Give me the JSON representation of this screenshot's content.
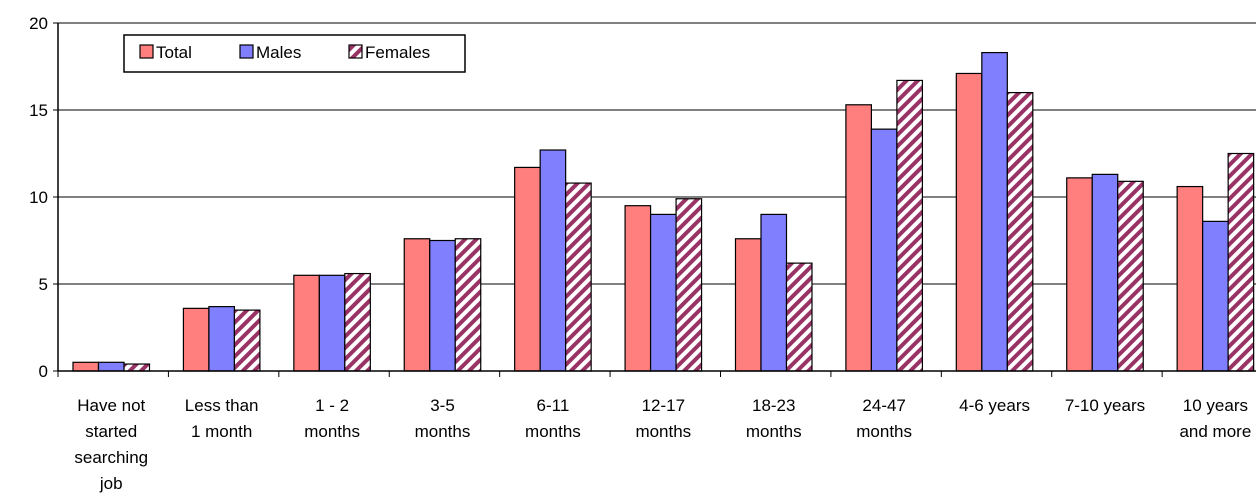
{
  "chart_data": {
    "type": "bar",
    "ylim": [
      0,
      20
    ],
    "yticks": [
      "0",
      "5",
      "10",
      "15",
      "20"
    ],
    "grid": true,
    "legend_position": "top-left",
    "categories": [
      [
        "Have not",
        "started",
        "searching",
        "job"
      ],
      [
        "Less than",
        "1 month"
      ],
      [
        "1 - 2",
        "months"
      ],
      [
        "3-5",
        "months"
      ],
      [
        "6-11",
        "months"
      ],
      [
        "12-17",
        "months"
      ],
      [
        "18-23",
        "months"
      ],
      [
        "24-47",
        "months"
      ],
      [
        "4-6 years"
      ],
      [
        "7-10 years"
      ],
      [
        "10 years",
        "and more"
      ]
    ],
    "series": [
      {
        "name": "Total",
        "color": "#ff7f7f",
        "pattern": "solid",
        "values": [
          0.5,
          3.6,
          5.5,
          7.6,
          11.7,
          9.5,
          7.6,
          15.3,
          17.1,
          11.1,
          10.6
        ]
      },
      {
        "name": "Males",
        "color": "#8080ff",
        "pattern": "solid",
        "values": [
          0.5,
          3.7,
          5.5,
          7.5,
          12.7,
          9.0,
          9.0,
          13.9,
          18.3,
          11.3,
          8.6
        ]
      },
      {
        "name": "Females",
        "color": "#993366",
        "pattern": "hatch",
        "values": [
          0.4,
          3.5,
          5.6,
          7.6,
          10.8,
          9.9,
          6.2,
          16.7,
          16.0,
          10.9,
          12.5
        ]
      }
    ]
  }
}
